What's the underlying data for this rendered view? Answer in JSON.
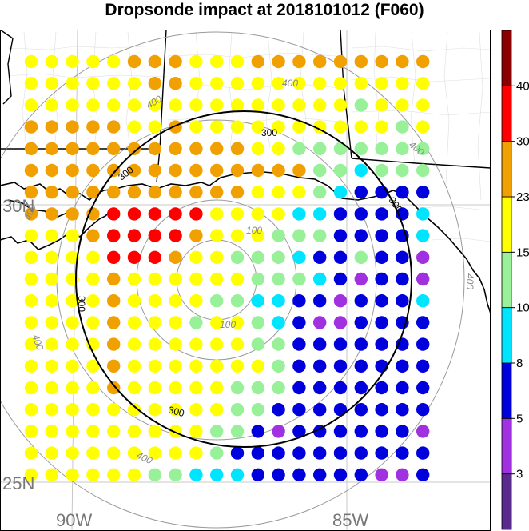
{
  "title": "Dropsonde impact at 2018101012 (F060)",
  "map": {
    "lat_labels": [
      "30N",
      "25N"
    ],
    "lon_labels": [
      "90W",
      "85W"
    ],
    "range_ring_labels": {
      "r100": [
        "100",
        "100"
      ],
      "r300": [
        "300",
        "300",
        "300",
        "300",
        "300"
      ],
      "r400": [
        "400",
        "400",
        "400",
        "400",
        "400",
        "400",
        "400"
      ]
    }
  },
  "colorbar": {
    "labels": [
      "3",
      "5",
      "8",
      "10",
      "15",
      "23",
      "30",
      "40"
    ],
    "colors": [
      "#5a2a8c",
      "#a030e0",
      "#0000dd",
      "#00e5ff",
      "#98f098",
      "#ffff00",
      "#f0a000",
      "#ff0000",
      "#8b0000"
    ]
  },
  "grid": {
    "rows": [
      "55555666555666666666",
      "55555566555555555555",
      "55555555555555554555",
      "66666556555555555545",
      "66666666666554444444",
      "66666666666666443444",
      "66666666666555432222",
      "66667777755553322223",
      "55567777655544422223",
      "55557776554443224221",
      "55556555555444321221",
      "55556555544332212223",
      "55556555455432112222",
      "55556555555442222222",
      "55556555555542222222",
      "55556555554442222222",
      "55555555554422222222",
      "55555555544212222221",
      "55555555542222222222",
      "55555544333222222112"
    ]
  }
}
